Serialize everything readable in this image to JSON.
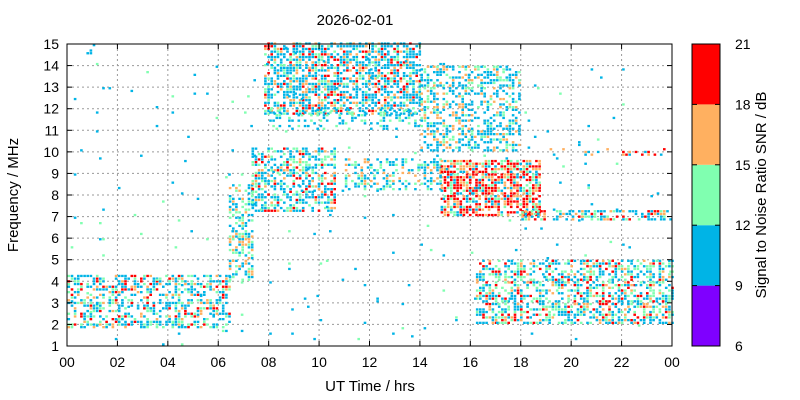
{
  "chart_data": {
    "type": "heatmap",
    "title": "2026-02-01",
    "xlabel": "UT Time / hrs",
    "ylabel": "Frequency / MHz",
    "colorbar_label": "Signal to Noise Ratio SNR / dB",
    "xlim": [
      0,
      24
    ],
    "ylim": [
      1,
      15
    ],
    "x_ticks": [
      "00",
      "02",
      "04",
      "06",
      "08",
      "10",
      "12",
      "14",
      "16",
      "18",
      "20",
      "22",
      "00"
    ],
    "y_ticks": [
      "1",
      "2",
      "3",
      "4",
      "5",
      "6",
      "7",
      "8",
      "9",
      "10",
      "11",
      "12",
      "13",
      "14",
      "15"
    ],
    "grid": true,
    "colorbar": {
      "range": [
        6,
        21
      ],
      "ticks": [
        "6",
        "9",
        "12",
        "15",
        "18",
        "21"
      ],
      "bands": [
        {
          "min": 6,
          "max": 9,
          "color": "#7f00ff"
        },
        {
          "min": 9,
          "max": 12,
          "color": "#00b4e6"
        },
        {
          "min": 12,
          "max": 15,
          "color": "#80ffb0"
        },
        {
          "min": 15,
          "max": 18,
          "color": "#ffb060"
        },
        {
          "min": 18,
          "max": 21,
          "color": "#ff0000"
        }
      ]
    },
    "regions": [
      {
        "t": [
          0.0,
          6.5
        ],
        "f": [
          1.8,
          4.2
        ],
        "density": 0.5,
        "snr": [
          9,
          10,
          10,
          11,
          13,
          13,
          16,
          19
        ]
      },
      {
        "t": [
          6.4,
          7.4
        ],
        "f": [
          4.0,
          8.5
        ],
        "density": 0.55,
        "snr": [
          9,
          10,
          13,
          13,
          16
        ]
      },
      {
        "t": [
          7.3,
          10.6
        ],
        "f": [
          7.2,
          10.2
        ],
        "density": 0.55,
        "snr": [
          9,
          10,
          10,
          13,
          13,
          16,
          19
        ]
      },
      {
        "t": [
          7.8,
          14.0
        ],
        "f": [
          11.7,
          15.0
        ],
        "density": 0.65,
        "snr": [
          9,
          10,
          10,
          11,
          13,
          16,
          19
        ]
      },
      {
        "t": [
          8.0,
          14.0
        ],
        "f": [
          11.0,
          12.0
        ],
        "density": 0.3,
        "snr": [
          10,
          10,
          13
        ]
      },
      {
        "t": [
          11.0,
          14.8
        ],
        "f": [
          8.2,
          9.6
        ],
        "density": 0.4,
        "snr": [
          10,
          10,
          13,
          16
        ]
      },
      {
        "t": [
          14.0,
          18.0
        ],
        "f": [
          10.0,
          14.0
        ],
        "density": 0.45,
        "snr": [
          9,
          10,
          10,
          13,
          16
        ]
      },
      {
        "t": [
          14.8,
          18.8
        ],
        "f": [
          7.0,
          9.6
        ],
        "density": 0.75,
        "snr": [
          10,
          13,
          16,
          16,
          19,
          19,
          19
        ]
      },
      {
        "t": [
          18.0,
          24.0
        ],
        "f": [
          6.8,
          7.2
        ],
        "density": 0.55,
        "snr": [
          10,
          10,
          13,
          16,
          19
        ]
      },
      {
        "t": [
          16.2,
          24.0
        ],
        "f": [
          2.0,
          5.0
        ],
        "density": 0.55,
        "snr": [
          9,
          10,
          10,
          13,
          13,
          16,
          19
        ]
      },
      {
        "t": [
          19.0,
          24.0
        ],
        "f": [
          9.8,
          10.1
        ],
        "density": 0.2,
        "snr": [
          10,
          16,
          19
        ]
      },
      {
        "t": [
          0.0,
          24.0
        ],
        "f": [
          1.0,
          15.0
        ],
        "density": 0.012,
        "snr": [
          9,
          10,
          13
        ]
      }
    ]
  }
}
